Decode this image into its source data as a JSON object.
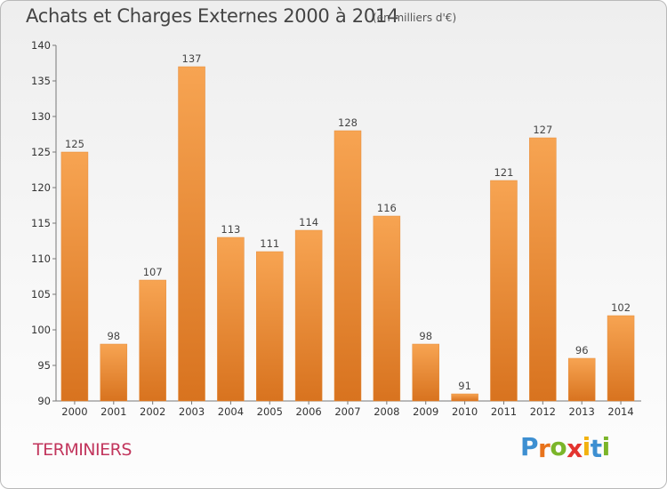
{
  "header": {
    "title": "Achats et Charges Externes 2000 à 2014",
    "unit": "(en milliers d'€)"
  },
  "footer": {
    "commune": "TERMINIERS",
    "logo": [
      "P",
      "r",
      "o",
      "x",
      "i",
      "t",
      "i"
    ]
  },
  "colors": {
    "bar_top": "#f7a452",
    "bar_bottom": "#d8731f",
    "logo": [
      "#3d8fd1",
      "#e8731c",
      "#7bb52a",
      "#e3342f",
      "#f2b20f",
      "#3d8fd1",
      "#7bb52a"
    ]
  },
  "chart_data": {
    "type": "bar",
    "title": "Achats et Charges Externes 2000 à 2014",
    "categories": [
      "2000",
      "2001",
      "2002",
      "2003",
      "2004",
      "2005",
      "2006",
      "2007",
      "2008",
      "2009",
      "2010",
      "2011",
      "2012",
      "2013",
      "2014"
    ],
    "values": [
      125,
      98,
      107,
      137,
      113,
      111,
      114,
      128,
      116,
      98,
      91,
      121,
      127,
      96,
      102
    ],
    "ylim": [
      90,
      140
    ],
    "yticks": [
      90,
      95,
      100,
      105,
      110,
      115,
      120,
      125,
      130,
      135,
      140
    ],
    "grid": false,
    "xlabel": "",
    "ylabel": ""
  }
}
